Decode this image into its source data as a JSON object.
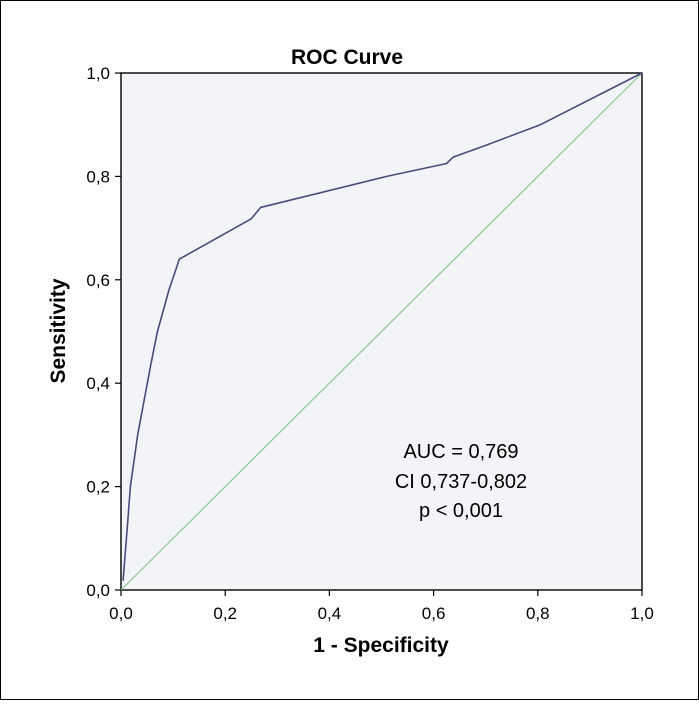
{
  "chart_data": {
    "type": "line",
    "title": "ROC Curve",
    "xlabel": "1 - Specificity",
    "ylabel": "Sensitivity",
    "xlim": [
      0,
      1
    ],
    "ylim": [
      0,
      1
    ],
    "x_ticks": [
      "0,0",
      "0,2",
      "0,4",
      "0,6",
      "0,8",
      "1,0"
    ],
    "y_ticks": [
      "0,0",
      "0,2",
      "0,4",
      "0,6",
      "0,8",
      "1,0"
    ],
    "grid": false,
    "series": [
      {
        "color": "#4a4a7e",
        "points": [
          [
            0.004,
            0.018
          ],
          [
            0.012,
            0.12
          ],
          [
            0.018,
            0.2
          ],
          [
            0.032,
            0.3
          ],
          [
            0.057,
            0.435
          ],
          [
            0.07,
            0.5
          ],
          [
            0.092,
            0.58
          ],
          [
            0.112,
            0.64
          ],
          [
            0.25,
            0.718
          ],
          [
            0.268,
            0.74
          ],
          [
            0.51,
            0.8
          ],
          [
            0.625,
            0.825
          ],
          [
            0.637,
            0.837
          ],
          [
            0.7,
            0.86
          ],
          [
            0.805,
            0.9
          ],
          [
            1.0,
            1.0
          ]
        ]
      },
      {
        "color": "#8cc98c",
        "points": [
          [
            0.0,
            0.0
          ],
          [
            1.0,
            1.0
          ]
        ]
      }
    ],
    "annotations": [
      "AUC = 0,769",
      "CI 0,737-0,802",
      "p < 0,001"
    ]
  }
}
